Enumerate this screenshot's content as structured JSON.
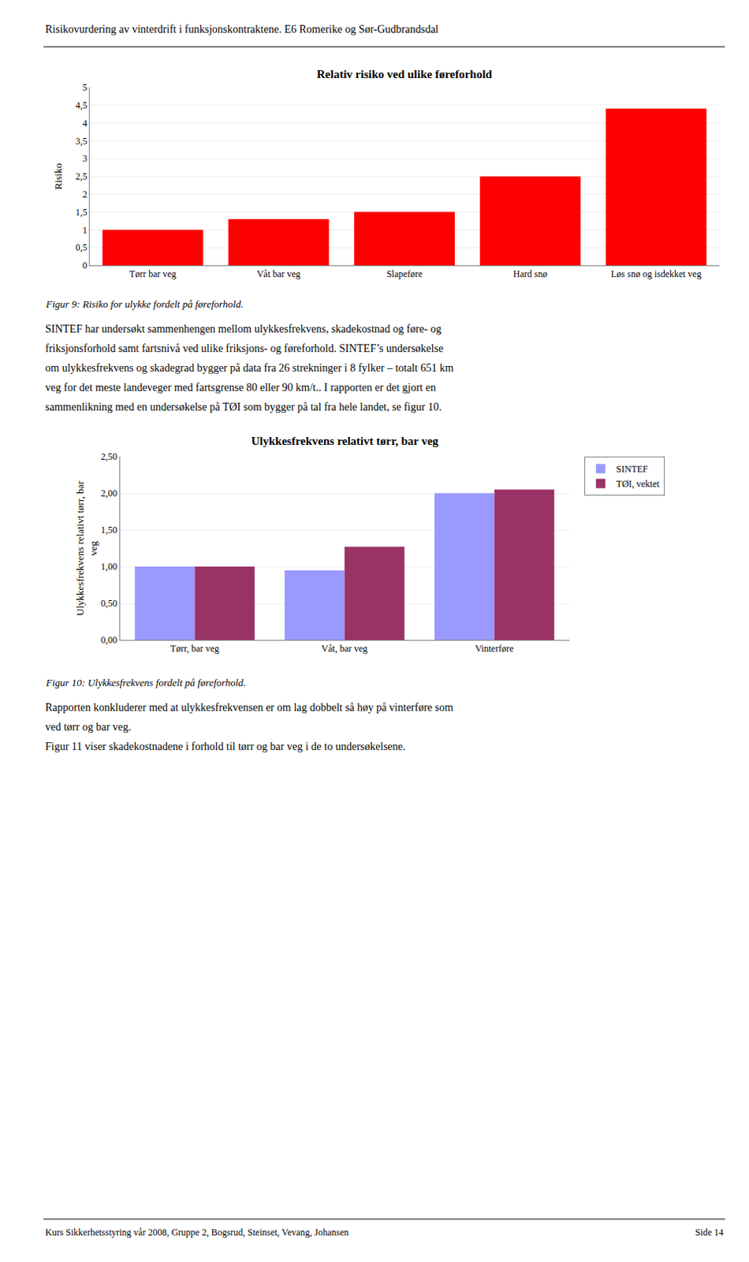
{
  "title": "Risikovurdering av vinterdrift i funksjonskontraktene. E6 Romerike og Sør-Gudbrandsdal",
  "annotations": [
    "Kurs Sikkerhetsstyring vår 2008, Gruppe 2, Bogsrud, Steinset, Vevang, Johansen",
    "Side 14"
  ],
  "chart_data": [
    {
      "type": "bar",
      "title": "Relativ risiko ved ulike føreforhold",
      "ylabel": "Risiko",
      "categories": [
        "Tørr bar veg",
        "Våt bar veg",
        "Slapeføre",
        "Hard snø",
        "Løs snø og isdekket veg"
      ],
      "values": [
        1.0,
        1.3,
        1.5,
        2.5,
        4.4
      ],
      "color": "#ff0000",
      "ylim": [
        0,
        5
      ],
      "yticks": [
        0,
        {
          "value": 0.5,
          "label": "0,5"
        },
        1,
        {
          "value": 1.5,
          "label": "1,5"
        },
        2,
        {
          "value": 2.5,
          "label": "2,5"
        },
        3,
        {
          "value": 3.5,
          "label": "3,5"
        },
        4,
        {
          "value": 4.5,
          "label": "4,5"
        },
        5
      ],
      "grid": true,
      "annotations": [
        "Figur 9: Risiko for ulykke fordelt på føreforhold.",
        "SINTEF har undersøkt sammenhengen mellom ulykkesfrekvens, skadekostnad og føre- og",
        "friksjonsforhold samt fartsnivå ved ulike friksjons- og føreforhold. SINTEF’s undersøkelse",
        "om ulykkesfrekvens og skadegrad bygger på data fra 26 strekninger i 8 fylker – totalt 651 km",
        "veg for det meste landeveger med fartsgrense 80 eller 90 km/t.. I rapporten er det gjort en",
        "sammenlikning med en undersøkelse på TØI som bygger på tal fra hele landet, se figur 10."
      ]
    },
    {
      "type": "bar",
      "title": "Ulykkesfrekvens relativt tørr, bar veg",
      "ylabel": "Ulykkesfrekvens relativt tørr, bar\nveg",
      "categories": [
        "Tørr, bar veg",
        "Våt, bar veg",
        "Vinterføre"
      ],
      "series": [
        {
          "name": "SINTEF",
          "color": "#9999ff",
          "values": [
            1.0,
            0.95,
            2.0
          ]
        },
        {
          "name": "TØI, vektet",
          "color": "#993366",
          "values": [
            1.0,
            1.27,
            2.05
          ]
        }
      ],
      "ylim": [
        0,
        2.5
      ],
      "yticks": [
        {
          "value": 0.0,
          "label": "0,00"
        },
        {
          "value": 0.5,
          "label": "0,50"
        },
        {
          "value": 1.0,
          "label": "1,00"
        },
        {
          "value": 1.5,
          "label": "1,50"
        },
        {
          "value": 2.0,
          "label": "2,00"
        },
        {
          "value": 2.5,
          "label": "2,50"
        }
      ],
      "grid": true,
      "legend": "upper right",
      "annotations": [
        "Figur 10: Ulykkesfrekvens fordelt på føreforhold.",
        "Rapporten konkluderer med at ulykkesfrekvensen er om lag dobbelt så høy på vinterføre som",
        "ved tørr og bar veg.",
        "Figur 11 viser skadekostnadene i forhold til tørr og bar veg i de to undersøkelsene."
      ]
    }
  ]
}
